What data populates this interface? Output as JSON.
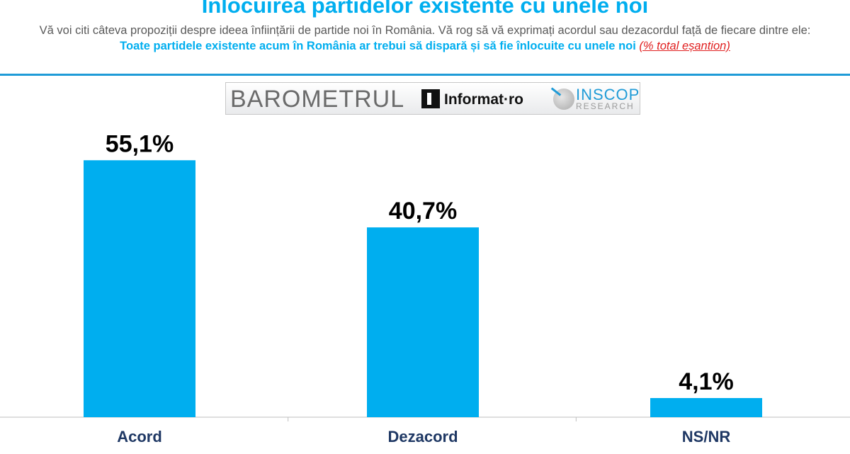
{
  "header": {
    "title": "Înlocuirea partidelor existente cu unele noi",
    "subtitle_intro": "Vă voi citi câteva propoziții despre ideea înființării de partide noi în România. Vă rog să vă exprimați acordul sau dezacordul față de fiecare dintre ele:",
    "subtitle_question": "Toate partidele existente acum în România ar trebui să dispară și să fie înlocuite cu unele noi",
    "subtitle_note": "(% total eșantion)"
  },
  "logos": {
    "barometrul": "BAROMETRUL",
    "informat": "Informat·ro",
    "inscop": "INSCOP",
    "research": "RESEARCH"
  },
  "colors": {
    "bar": "#00AEEF",
    "title": "#00AEEF",
    "category_label": "#1F3864",
    "value_label": "#000000",
    "note": "#E02020"
  },
  "chart_data": {
    "type": "bar",
    "categories": [
      "Acord",
      "Dezacord",
      "NS/NR"
    ],
    "values": [
      55.1,
      40.7,
      4.1
    ],
    "value_labels": [
      "55,1%",
      "40,7%",
      "4,1%"
    ],
    "ylim": [
      0,
      60
    ],
    "grid": false,
    "legend": "none"
  }
}
